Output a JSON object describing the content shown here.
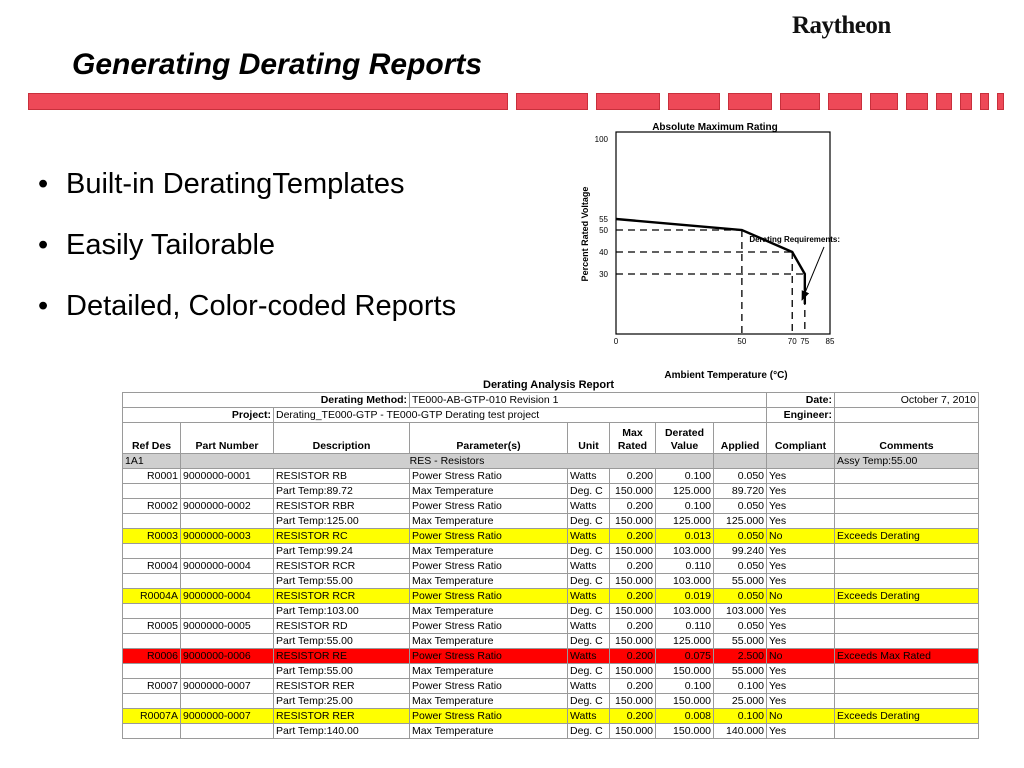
{
  "logo": "Raytheon",
  "title": "Generating Derating Reports",
  "bullets": [
    "Built-in DeratingTemplates",
    "Easily Tailorable",
    "Detailed, Color-coded Reports"
  ],
  "colors": {
    "accent_bar": "#ee4958",
    "highlight": "#ffff00",
    "alert": "#ff0000",
    "group_row": "#cfcfcf"
  },
  "chart_data": {
    "type": "line",
    "title": "Absolute Maximum Rating",
    "xlabel": "Ambient Temperature (°C)",
    "ylabel": "Percent Rated Voltage",
    "xlim": [
      0,
      85
    ],
    "ylim": [
      0,
      100
    ],
    "x_ticks": [
      "0",
      "50",
      "70",
      "75",
      "85"
    ],
    "y_ticks": [
      "100",
      "55",
      "50",
      "40",
      "30"
    ],
    "series": [
      {
        "x": [
          0,
          50,
          70,
          75,
          75
        ],
        "y": [
          55,
          50,
          40,
          30,
          15
        ]
      }
    ],
    "annotation": "Derating Requirements:"
  },
  "report": {
    "title": "Derating Analysis Report",
    "method_label": "Derating Method:",
    "method_value": "TE000-AB-GTP-010 Revision 1",
    "date_label": "Date:",
    "date_value": "October 7, 2010",
    "project_label": "Project:",
    "project_value": "Derating_TE000-GTP - TE000-GTP Derating test project",
    "engineer_label": "Engineer:",
    "columns": [
      "Ref Des",
      "Part Number",
      "Description",
      "Parameter(s)",
      "Unit",
      "Max Rated",
      "Derated Value",
      "Applied",
      "Compliant",
      "Comments"
    ],
    "group": {
      "ref": "1A1",
      "label": "RES - Resistors",
      "comment": "Assy Temp:55.00"
    },
    "rows": [
      {
        "ref": "R0001",
        "part": "9000000-0001",
        "desc": "RESISTOR RB",
        "param": "Power Stress Ratio",
        "unit": "Watts",
        "max": "0.200",
        "derated": "0.100",
        "applied": "0.050",
        "compliant": "Yes",
        "comment": "",
        "color": ""
      },
      {
        "ref": "",
        "part": "",
        "desc": "Part Temp:89.72",
        "param": "Max Temperature",
        "unit": "Deg. C",
        "max": "150.000",
        "derated": "125.000",
        "applied": "89.720",
        "compliant": "Yes",
        "comment": "",
        "color": ""
      },
      {
        "ref": "R0002",
        "part": "9000000-0002",
        "desc": "RESISTOR RBR",
        "param": "Power Stress Ratio",
        "unit": "Watts",
        "max": "0.200",
        "derated": "0.100",
        "applied": "0.050",
        "compliant": "Yes",
        "comment": "",
        "color": ""
      },
      {
        "ref": "",
        "part": "",
        "desc": "Part Temp:125.00",
        "param": "Max Temperature",
        "unit": "Deg. C",
        "max": "150.000",
        "derated": "125.000",
        "applied": "125.000",
        "compliant": "Yes",
        "comment": "",
        "color": ""
      },
      {
        "ref": "R0003",
        "part": "9000000-0003",
        "desc": "RESISTOR RC",
        "param": "Power Stress Ratio",
        "unit": "Watts",
        "max": "0.200",
        "derated": "0.013",
        "applied": "0.050",
        "compliant": "No",
        "comment": "Exceeds Derating",
        "color": "hl"
      },
      {
        "ref": "",
        "part": "",
        "desc": "Part Temp:99.24",
        "param": "Max Temperature",
        "unit": "Deg. C",
        "max": "150.000",
        "derated": "103.000",
        "applied": "99.240",
        "compliant": "Yes",
        "comment": "",
        "color": ""
      },
      {
        "ref": "R0004",
        "part": "9000000-0004",
        "desc": "RESISTOR RCR",
        "param": "Power Stress Ratio",
        "unit": "Watts",
        "max": "0.200",
        "derated": "0.110",
        "applied": "0.050",
        "compliant": "Yes",
        "comment": "",
        "color": ""
      },
      {
        "ref": "",
        "part": "",
        "desc": "Part Temp:55.00",
        "param": "Max Temperature",
        "unit": "Deg. C",
        "max": "150.000",
        "derated": "103.000",
        "applied": "55.000",
        "compliant": "Yes",
        "comment": "",
        "color": ""
      },
      {
        "ref": "R0004A",
        "part": "9000000-0004",
        "desc": "RESISTOR RCR",
        "param": "Power Stress Ratio",
        "unit": "Watts",
        "max": "0.200",
        "derated": "0.019",
        "applied": "0.050",
        "compliant": "No",
        "comment": "Exceeds Derating",
        "color": "hl"
      },
      {
        "ref": "",
        "part": "",
        "desc": "Part Temp:103.00",
        "param": "Max Temperature",
        "unit": "Deg. C",
        "max": "150.000",
        "derated": "103.000",
        "applied": "103.000",
        "compliant": "Yes",
        "comment": "",
        "color": ""
      },
      {
        "ref": "R0005",
        "part": "9000000-0005",
        "desc": "RESISTOR RD",
        "param": "Power Stress Ratio",
        "unit": "Watts",
        "max": "0.200",
        "derated": "0.110",
        "applied": "0.050",
        "compliant": "Yes",
        "comment": "",
        "color": ""
      },
      {
        "ref": "",
        "part": "",
        "desc": "Part Temp:55.00",
        "param": "Max Temperature",
        "unit": "Deg. C",
        "max": "150.000",
        "derated": "125.000",
        "applied": "55.000",
        "compliant": "Yes",
        "comment": "",
        "color": ""
      },
      {
        "ref": "R0006",
        "part": "9000000-0006",
        "desc": "RESISTOR RE",
        "param": "Power Stress Ratio",
        "unit": "Watts",
        "max": "0.200",
        "derated": "0.075",
        "applied": "2.500",
        "compliant": "No",
        "comment": "Exceeds Max Rated",
        "color": "red"
      },
      {
        "ref": "",
        "part": "",
        "desc": "Part Temp:55.00",
        "param": "Max Temperature",
        "unit": "Deg. C",
        "max": "150.000",
        "derated": "150.000",
        "applied": "55.000",
        "compliant": "Yes",
        "comment": "",
        "color": ""
      },
      {
        "ref": "R0007",
        "part": "9000000-0007",
        "desc": "RESISTOR RER",
        "param": "Power Stress Ratio",
        "unit": "Watts",
        "max": "0.200",
        "derated": "0.100",
        "applied": "0.100",
        "compliant": "Yes",
        "comment": "",
        "color": ""
      },
      {
        "ref": "",
        "part": "",
        "desc": "Part Temp:25.00",
        "param": "Max Temperature",
        "unit": "Deg. C",
        "max": "150.000",
        "derated": "150.000",
        "applied": "25.000",
        "compliant": "Yes",
        "comment": "",
        "color": ""
      },
      {
        "ref": "R0007A",
        "part": "9000000-0007",
        "desc": "RESISTOR RER",
        "param": "Power Stress Ratio",
        "unit": "Watts",
        "max": "0.200",
        "derated": "0.008",
        "applied": "0.100",
        "compliant": "No",
        "comment": "Exceeds Derating",
        "color": "hl"
      },
      {
        "ref": "",
        "part": "",
        "desc": "Part Temp:140.00",
        "param": "Max Temperature",
        "unit": "Deg. C",
        "max": "150.000",
        "derated": "150.000",
        "applied": "140.000",
        "compliant": "Yes",
        "comment": "",
        "color": ""
      }
    ]
  }
}
